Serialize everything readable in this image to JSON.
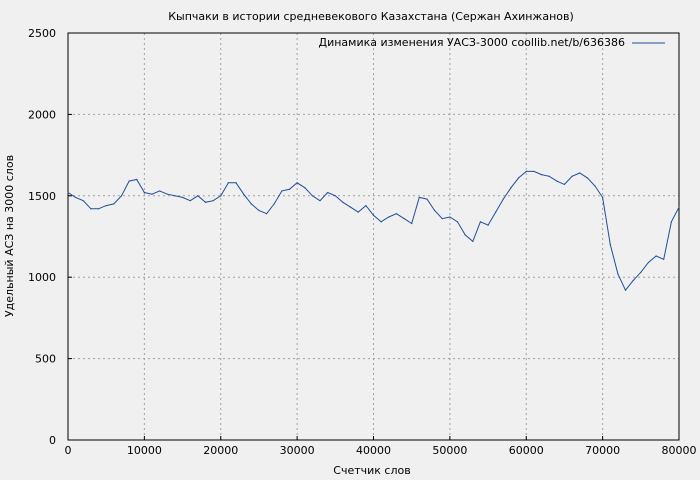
{
  "chart_data": {
    "type": "line",
    "title": "Кыпчаки в истории средневекового Казахстана (Сержан Ахинжанов)",
    "xlabel": "Счетчик слов",
    "ylabel": "Удельный АСЗ на 3000 слов",
    "xlim": [
      0,
      80000
    ],
    "ylim": [
      0,
      2500
    ],
    "xticks": [
      "0",
      "10000",
      "20000",
      "30000",
      "40000",
      "50000",
      "60000",
      "70000",
      "80000"
    ],
    "yticks": [
      "0",
      "500",
      "1000",
      "1500",
      "2000",
      "2500"
    ],
    "grid": true,
    "legend_position": "top-right",
    "series": [
      {
        "name": "Динамика изменения УАСЗ-3000 coollib.net/b/636386",
        "color": "#1f4e9a",
        "x": [
          0,
          1000,
          2000,
          3000,
          4000,
          5000,
          6000,
          7000,
          8000,
          9000,
          10000,
          11000,
          12000,
          13000,
          14000,
          15000,
          16000,
          17000,
          18000,
          19000,
          20000,
          21000,
          22000,
          23000,
          24000,
          25000,
          26000,
          27000,
          28000,
          29000,
          30000,
          31000,
          32000,
          33000,
          34000,
          35000,
          36000,
          37000,
          38000,
          39000,
          40000,
          41000,
          42000,
          43000,
          44000,
          45000,
          46000,
          47000,
          48000,
          49000,
          50000,
          51000,
          52000,
          53000,
          54000,
          55000,
          56000,
          57000,
          58000,
          59000,
          60000,
          61000,
          62000,
          63000,
          64000,
          65000,
          66000,
          67000,
          68000,
          69000,
          70000,
          71000,
          72000,
          73000,
          74000,
          75000,
          76000,
          77000,
          78000,
          79000,
          80000
        ],
        "values": [
          1520,
          1490,
          1470,
          1420,
          1420,
          1440,
          1450,
          1500,
          1590,
          1600,
          1520,
          1510,
          1530,
          1510,
          1500,
          1490,
          1470,
          1500,
          1460,
          1470,
          1500,
          1580,
          1580,
          1510,
          1450,
          1410,
          1390,
          1450,
          1530,
          1540,
          1580,
          1550,
          1500,
          1470,
          1520,
          1500,
          1460,
          1430,
          1400,
          1440,
          1380,
          1340,
          1370,
          1390,
          1360,
          1330,
          1490,
          1480,
          1410,
          1360,
          1370,
          1340,
          1260,
          1220,
          1340,
          1320,
          1400,
          1480,
          1550,
          1610,
          1650,
          1650,
          1630,
          1620,
          1590,
          1570,
          1620,
          1640,
          1610,
          1560,
          1490,
          1200,
          1020,
          920,
          980,
          1030,
          1090,
          1130,
          1110,
          1340,
          1430
        ]
      }
    ]
  }
}
